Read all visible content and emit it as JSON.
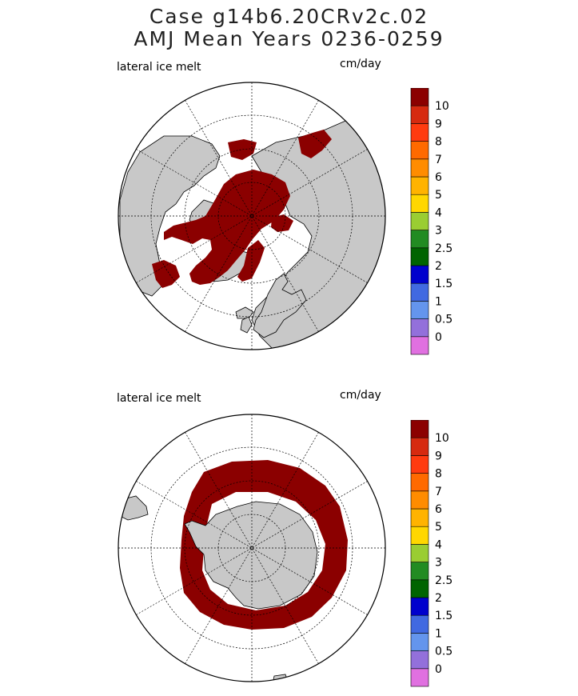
{
  "title_line1": "Case g14b6.20CRv2c.02",
  "title_line2": "AMJ Mean   Years 0236-0259",
  "colors": {
    "ice_melt": "#8b0000",
    "land": "#c8c8c8",
    "ocean": "#ffffff"
  },
  "chart_data": [
    {
      "type": "heatmap",
      "projection": "north-polar-stereographic",
      "variable_label": "lateral ice melt",
      "units": "cm/day",
      "colorbar_levels": [
        "0",
        "0.5",
        "1",
        "1.5",
        "2",
        "2.5",
        "3",
        "4",
        "5",
        "6",
        "7",
        "8",
        "9",
        "10"
      ],
      "colorbar_colors": [
        "#e070e0",
        "#9370db",
        "#6495ed",
        "#4169e1",
        "#0000cd",
        "#006400",
        "#228b22",
        "#9acd32",
        "#ffd700",
        "#ffb300",
        "#ff8c00",
        "#ff6a00",
        "#ff3b10",
        "#d62a10",
        "#8b0000"
      ],
      "field_value": ">10 (dark red over Arctic sea-ice region)"
    },
    {
      "type": "heatmap",
      "projection": "south-polar-stereographic",
      "variable_label": "lateral ice melt",
      "units": "cm/day",
      "colorbar_levels": [
        "0",
        "0.5",
        "1",
        "1.5",
        "2",
        "2.5",
        "3",
        "4",
        "5",
        "6",
        "7",
        "8",
        "9",
        "10"
      ],
      "colorbar_colors": [
        "#e070e0",
        "#9370db",
        "#6495ed",
        "#4169e1",
        "#0000cd",
        "#006400",
        "#228b22",
        "#9acd32",
        "#ffd700",
        "#ffb300",
        "#ff8c00",
        "#ff6a00",
        "#ff3b10",
        "#d62a10",
        "#8b0000"
      ],
      "field_value": ">10 (dark red ring around Antarctica)"
    }
  ]
}
